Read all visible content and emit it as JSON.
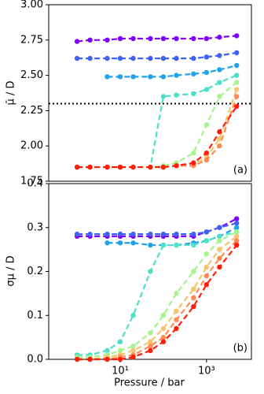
{
  "chart_data": [
    {
      "type": "line",
      "ylabel": "μ̄ / D",
      "annotation": "(a)",
      "log_x": true,
      "x": [
        1,
        2,
        5,
        10,
        20,
        50,
        100,
        200,
        500,
        1000,
        2000,
        5000
      ],
      "xlim": [
        0.22,
        11000
      ],
      "ylim": [
        1.75,
        3.0
      ],
      "yticks": [
        {
          "value": 1.75,
          "label": "1.75"
        },
        {
          "value": 2.0,
          "label": "2.00"
        },
        2.25,
        {
          "value": 2.5,
          "label": "2.50"
        },
        2.75,
        {
          "value": 3.0,
          "label": "3.00"
        }
      ],
      "hline": 2.3,
      "series": [
        {
          "color": "#8000ff",
          "values": [
            2.74,
            2.75,
            2.75,
            2.76,
            2.76,
            2.76,
            2.76,
            2.76,
            2.76,
            2.76,
            2.77,
            2.78
          ]
        },
        {
          "color": "#3d63f5",
          "values": [
            2.62,
            2.62,
            2.62,
            2.62,
            2.62,
            2.62,
            2.62,
            2.62,
            2.62,
            2.63,
            2.64,
            2.66
          ]
        },
        {
          "color": "#1fa2ee",
          "values": [
            null,
            null,
            2.49,
            2.49,
            2.49,
            2.49,
            2.49,
            2.5,
            2.51,
            2.52,
            2.54,
            2.57
          ]
        },
        {
          "color": "#4be0c8",
          "values": [
            1.85,
            1.85,
            1.85,
            1.85,
            1.85,
            1.85,
            2.35,
            2.36,
            2.37,
            2.4,
            2.45,
            2.5
          ]
        },
        {
          "color": "#a6f48e",
          "values": [
            1.85,
            1.85,
            1.85,
            1.85,
            1.85,
            1.85,
            1.86,
            1.88,
            1.95,
            2.15,
            2.35,
            2.45
          ]
        },
        {
          "color": "#f6c46c",
          "values": [
            1.85,
            1.85,
            1.85,
            1.85,
            1.85,
            1.85,
            1.85,
            1.86,
            1.87,
            1.92,
            2.05,
            2.4
          ]
        },
        {
          "color": "#ff8a52",
          "values": [
            1.85,
            1.85,
            1.85,
            1.85,
            1.85,
            1.85,
            1.85,
            1.86,
            1.86,
            1.9,
            2.0,
            2.35
          ]
        },
        {
          "color": "#ff1e0a",
          "values": [
            1.85,
            1.85,
            1.85,
            1.85,
            1.85,
            1.85,
            1.85,
            1.86,
            1.88,
            1.95,
            2.1,
            2.28
          ]
        }
      ]
    },
    {
      "type": "line",
      "ylabel": "σμ / D",
      "xlabel": "Pressure / bar",
      "annotation": "(b)",
      "log_x": true,
      "x": [
        1,
        2,
        5,
        10,
        20,
        50,
        100,
        200,
        500,
        1000,
        2000,
        5000
      ],
      "xlim": [
        0.22,
        11000
      ],
      "xticks": [
        {
          "value": 10,
          "label": "10¹"
        },
        {
          "value": 1000,
          "label": "10³"
        }
      ],
      "ylim": [
        0.0,
        0.4
      ],
      "yticks": [
        {
          "value": 0,
          "label": "0.0"
        },
        0.1,
        0.2,
        0.3,
        0.4
      ],
      "series": [
        {
          "color": "#8000ff",
          "values": [
            0.28,
            0.28,
            0.28,
            0.28,
            0.28,
            0.28,
            0.28,
            0.28,
            0.28,
            0.29,
            0.3,
            0.32
          ]
        },
        {
          "color": "#3d63f5",
          "values": [
            0.285,
            0.285,
            0.285,
            0.285,
            0.285,
            0.285,
            0.285,
            0.285,
            0.285,
            0.29,
            0.3,
            0.31
          ]
        },
        {
          "color": "#1fa2ee",
          "values": [
            null,
            null,
            0.265,
            0.265,
            0.265,
            0.26,
            0.26,
            0.26,
            0.265,
            0.27,
            0.28,
            0.3
          ]
        },
        {
          "color": "#4be0c8",
          "values": [
            0.01,
            0.01,
            0.02,
            0.04,
            0.1,
            0.2,
            0.26,
            0.26,
            0.26,
            0.27,
            0.28,
            0.29
          ]
        },
        {
          "color": "#a6f48e",
          "values": [
            0.005,
            0.005,
            0.01,
            0.02,
            0.03,
            0.06,
            0.1,
            0.15,
            0.2,
            0.24,
            0.27,
            0.29
          ]
        },
        {
          "color": "#f6c46c",
          "values": [
            0,
            0,
            0.005,
            0.01,
            0.02,
            0.04,
            0.07,
            0.11,
            0.16,
            0.21,
            0.25,
            0.28
          ]
        },
        {
          "color": "#ff8a52",
          "values": [
            0,
            0,
            0,
            0.005,
            0.01,
            0.03,
            0.05,
            0.09,
            0.14,
            0.19,
            0.23,
            0.27
          ]
        },
        {
          "color": "#ff1e0a",
          "values": [
            0,
            0,
            0,
            0,
            0.005,
            0.02,
            0.04,
            0.07,
            0.12,
            0.17,
            0.21,
            0.26
          ]
        }
      ]
    }
  ]
}
